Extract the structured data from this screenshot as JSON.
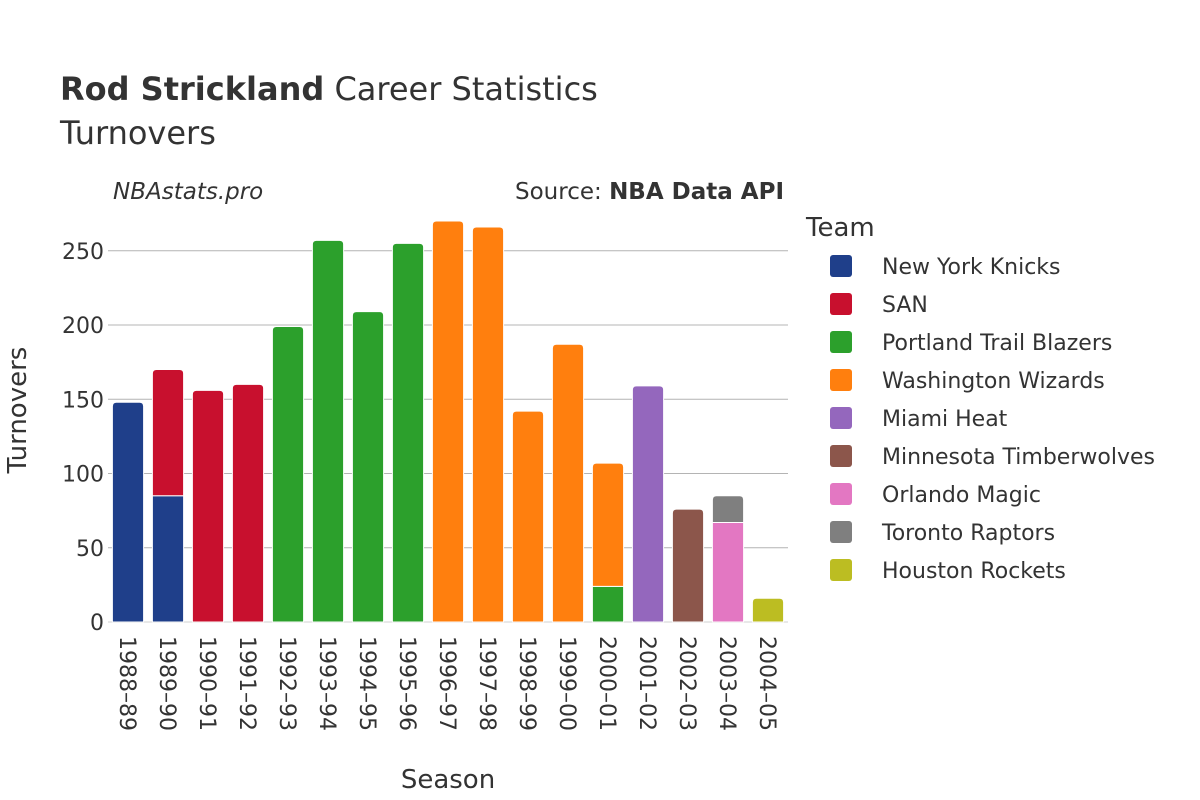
{
  "header": {
    "title_bold": "Rod Strickland",
    "title_rest": " Career Statistics",
    "subtitle": "Turnovers",
    "site": "NBAstats.pro",
    "source_prefix": "Source: ",
    "source_name": "NBA Data API"
  },
  "chart_data": {
    "type": "bar",
    "stacked": true,
    "xlabel": "Season",
    "ylabel": "Turnovers",
    "ylim": [
      0,
      270
    ],
    "yticks": [
      0,
      50,
      100,
      150,
      200,
      250
    ],
    "grid": true,
    "legend_title": "Team",
    "legend_position": "right",
    "categories": [
      "1988–89",
      "1989–90",
      "1990–91",
      "1991–92",
      "1992–93",
      "1993–94",
      "1994–95",
      "1995–96",
      "1996–97",
      "1997–98",
      "1998–99",
      "1999–00",
      "2000–01",
      "2001–02",
      "2002–03",
      "2003–04",
      "2004–05"
    ],
    "series": [
      {
        "name": "New York Knicks",
        "color": "#1f3f8a",
        "values": [
          148,
          85,
          0,
          0,
          0,
          0,
          0,
          0,
          0,
          0,
          0,
          0,
          0,
          0,
          0,
          0,
          0
        ]
      },
      {
        "name": "SAN",
        "color": "#c8102e",
        "values": [
          0,
          85,
          156,
          160,
          0,
          0,
          0,
          0,
          0,
          0,
          0,
          0,
          0,
          0,
          0,
          0,
          0
        ]
      },
      {
        "name": "Portland Trail Blazers",
        "color": "#2ca02c",
        "values": [
          0,
          0,
          0,
          0,
          199,
          257,
          209,
          255,
          0,
          0,
          0,
          0,
          24,
          0,
          0,
          0,
          0
        ]
      },
      {
        "name": "Washington Wizards",
        "color": "#ff7f0e",
        "values": [
          0,
          0,
          0,
          0,
          0,
          0,
          0,
          0,
          270,
          266,
          142,
          187,
          83,
          0,
          0,
          0,
          0
        ]
      },
      {
        "name": "Miami Heat",
        "color": "#9467bd",
        "values": [
          0,
          0,
          0,
          0,
          0,
          0,
          0,
          0,
          0,
          0,
          0,
          0,
          0,
          159,
          0,
          0,
          0
        ]
      },
      {
        "name": "Minnesota Timberwolves",
        "color": "#8c564b",
        "values": [
          0,
          0,
          0,
          0,
          0,
          0,
          0,
          0,
          0,
          0,
          0,
          0,
          0,
          0,
          76,
          0,
          0
        ]
      },
      {
        "name": "Orlando Magic",
        "color": "#e377c2",
        "values": [
          0,
          0,
          0,
          0,
          0,
          0,
          0,
          0,
          0,
          0,
          0,
          0,
          0,
          0,
          0,
          67,
          0
        ]
      },
      {
        "name": "Toronto Raptors",
        "color": "#7f7f7f",
        "values": [
          0,
          0,
          0,
          0,
          0,
          0,
          0,
          0,
          0,
          0,
          0,
          0,
          0,
          0,
          0,
          18,
          0
        ]
      },
      {
        "name": "Houston Rockets",
        "color": "#bcbd22",
        "values": [
          0,
          0,
          0,
          0,
          0,
          0,
          0,
          0,
          0,
          0,
          0,
          0,
          0,
          0,
          0,
          0,
          16
        ]
      }
    ]
  }
}
